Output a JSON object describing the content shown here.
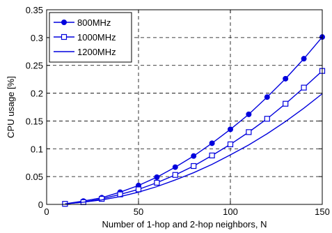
{
  "chart_data": {
    "type": "line",
    "xlabel": "Number of 1-hop and 2-hop neighbors, N",
    "ylabel": "CPU usage [%]",
    "xlim": [
      0,
      150
    ],
    "ylim": [
      0,
      0.35
    ],
    "xticks": [
      0,
      50,
      100,
      150
    ],
    "yticks": [
      0,
      0.05,
      0.1,
      0.15,
      0.2,
      0.25,
      0.3,
      0.35
    ],
    "xtick_labels": [
      "0",
      "50",
      "100",
      "150"
    ],
    "ytick_labels": [
      "0",
      "0.05",
      "0.1",
      "0.15",
      "0.2",
      "0.25",
      "0.3",
      "0.35"
    ],
    "grid": true,
    "legend_position": "top-left",
    "x": [
      10,
      20,
      30,
      40,
      50,
      60,
      70,
      80,
      90,
      100,
      110,
      120,
      130,
      140,
      150
    ],
    "series": [
      {
        "name": "800MHz",
        "marker": "filled-circle",
        "color": "#0000dd",
        "values": [
          0.001,
          0.006,
          0.012,
          0.022,
          0.034,
          0.049,
          0.067,
          0.087,
          0.11,
          0.135,
          0.162,
          0.193,
          0.226,
          0.262,
          0.301
        ]
      },
      {
        "name": "1000MHz",
        "marker": "open-square",
        "color": "#0000dd",
        "values": [
          0.001,
          0.004,
          0.01,
          0.018,
          0.027,
          0.039,
          0.053,
          0.069,
          0.088,
          0.108,
          0.13,
          0.154,
          0.181,
          0.21,
          0.24
        ]
      },
      {
        "name": "1200MHz",
        "marker": "none",
        "color": "#0000dd",
        "values": [
          0.001,
          0.004,
          0.008,
          0.014,
          0.022,
          0.032,
          0.044,
          0.057,
          0.072,
          0.089,
          0.107,
          0.127,
          0.149,
          0.173,
          0.199
        ]
      }
    ]
  }
}
